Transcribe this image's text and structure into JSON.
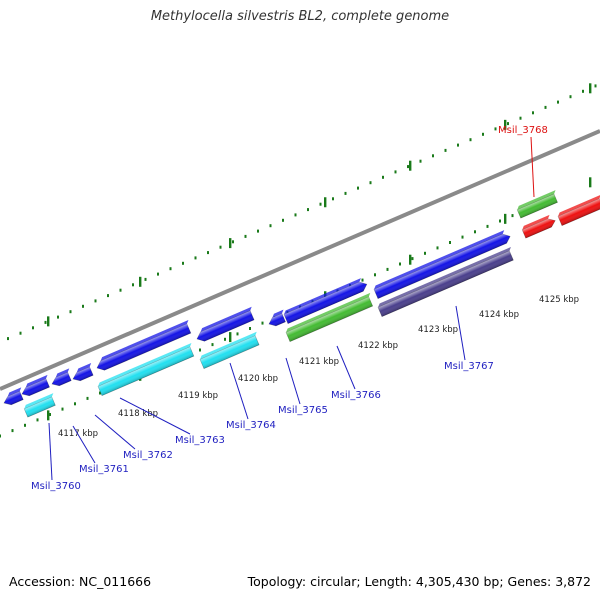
{
  "title": "Methylocella silvestris BL2, complete genome",
  "footer": {
    "accession": "Accession: NC_011666",
    "summary": "Topology: circular; Length: 4,305,430 bp; Genes: 3,872"
  },
  "ticks": [
    "4117 kbp",
    "4118 kbp",
    "4119 kbp",
    "4120 kbp",
    "4121 kbp",
    "4122 kbp",
    "4123 kbp",
    "4124 kbp",
    "4125 kbp"
  ],
  "gene_labels": [
    "Msil_3760",
    "Msil_3761",
    "Msil_3762",
    "Msil_3763",
    "Msil_3764",
    "Msil_3765",
    "Msil_3766",
    "Msil_3767",
    "Msil_3768"
  ],
  "colors": {
    "blue": "#1414e6",
    "cyan": "#22e0f0",
    "green": "#44bb33",
    "red": "#ee1111",
    "slate": "#4a3f8c",
    "axis": "#8a8a8a",
    "tick": "#1a7a1a",
    "label_blue": "#1f1fc0",
    "label_red": "#dd1111"
  }
}
